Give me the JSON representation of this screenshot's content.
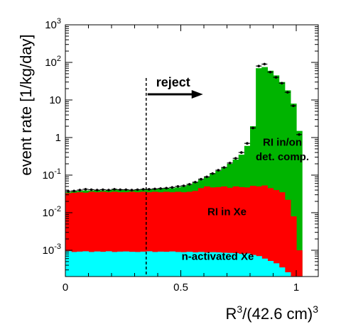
{
  "chart_data": {
    "type": "area",
    "title": "",
    "xlabel": "R",
    "xlabel_sup1": "3",
    "xlabel_mid": "/(42.6 cm)",
    "xlabel_sup2": "3",
    "ylabel": "event rate [1/kg/day]",
    "xlim": [
      0,
      1.08
    ],
    "ylim": [
      0.0002,
      1000
    ],
    "y_scale": "log",
    "grid": false,
    "x_ticks": [
      {
        "value": 0,
        "label": "0"
      },
      {
        "value": 0.5,
        "label": "0.5"
      },
      {
        "value": 1,
        "label": "1"
      }
    ],
    "y_ticks": [
      {
        "value": 0.001,
        "base": "10",
        "exp": "-3"
      },
      {
        "value": 0.01,
        "base": "10",
        "exp": "-2"
      },
      {
        "value": 0.1,
        "base": "10",
        "exp": "-1"
      },
      {
        "value": 1,
        "label": "1"
      },
      {
        "value": 10,
        "label": "10"
      },
      {
        "value": 100,
        "base": "10",
        "exp": "2"
      },
      {
        "value": 1000,
        "base": "10",
        "exp": "3"
      }
    ],
    "bin_width": 0.025,
    "x_bin_starts": [
      0.0,
      0.025,
      0.05,
      0.075,
      0.1,
      0.125,
      0.15,
      0.175,
      0.2,
      0.225,
      0.25,
      0.275,
      0.3,
      0.325,
      0.35,
      0.375,
      0.4,
      0.425,
      0.45,
      0.475,
      0.5,
      0.525,
      0.55,
      0.575,
      0.6,
      0.625,
      0.65,
      0.675,
      0.7,
      0.725,
      0.75,
      0.775,
      0.8,
      0.825,
      0.85,
      0.875,
      0.9,
      0.925,
      0.95,
      0.975,
      1.0,
      1.025
    ],
    "series": [
      {
        "name": "n-activated Xe",
        "color": "#00ffff",
        "stack_top": [
          0.00095,
          0.0009,
          0.00092,
          0.00094,
          0.0009,
          0.00093,
          0.00091,
          0.00094,
          0.0009,
          0.00092,
          0.00093,
          0.00091,
          0.0009,
          0.00092,
          0.00094,
          0.0009,
          0.00092,
          0.00091,
          0.00093,
          0.0009,
          0.00089,
          0.00091,
          0.00088,
          0.0009,
          0.00087,
          0.00089,
          0.00088,
          0.00086,
          0.00085,
          0.00084,
          0.0008,
          0.00082,
          0.00075,
          0.0007,
          0.0006,
          0.00052,
          0.00045,
          0.00035,
          0.00026,
          0.0002,
          0.0002,
          0.0002
        ]
      },
      {
        "name": "RI in Xe",
        "color": "#ff0000",
        "stack_top": [
          0.033,
          0.034,
          0.035,
          0.034,
          0.036,
          0.035,
          0.036,
          0.035,
          0.036,
          0.035,
          0.035,
          0.036,
          0.035,
          0.036,
          0.035,
          0.036,
          0.035,
          0.036,
          0.035,
          0.036,
          0.035,
          0.036,
          0.038,
          0.045,
          0.05,
          0.047,
          0.048,
          0.05,
          0.046,
          0.05,
          0.048,
          0.047,
          0.052,
          0.05,
          0.053,
          0.045,
          0.04,
          0.035,
          0.022,
          0.008,
          0.001,
          0.0002
        ]
      },
      {
        "name": "RI in/on det. comp.",
        "color": "#00b400",
        "stack_top": [
          0.035,
          0.037,
          0.038,
          0.039,
          0.039,
          0.04,
          0.039,
          0.04,
          0.041,
          0.04,
          0.04,
          0.041,
          0.04,
          0.041,
          0.041,
          0.042,
          0.043,
          0.044,
          0.045,
          0.047,
          0.05,
          0.055,
          0.065,
          0.075,
          0.09,
          0.11,
          0.13,
          0.16,
          0.2,
          0.26,
          0.35,
          0.6,
          2.0,
          70,
          75,
          60,
          45,
          30,
          18,
          8,
          1.5,
          0.0002
        ]
      }
    ],
    "data_points": {
      "name": "data",
      "x": [
        0.0125,
        0.0375,
        0.0625,
        0.0875,
        0.1125,
        0.1375,
        0.1625,
        0.1875,
        0.2125,
        0.2375,
        0.2625,
        0.2875,
        0.3125,
        0.3375,
        0.3625,
        0.3875,
        0.4125,
        0.4375,
        0.4625,
        0.4875,
        0.5125,
        0.5375,
        0.5625,
        0.5875,
        0.6125,
        0.6375,
        0.6625,
        0.6875,
        0.7125,
        0.7375,
        0.7625,
        0.7875,
        0.8125,
        0.8375,
        0.8625,
        0.8875,
        0.9125,
        0.9375,
        0.9625,
        0.9875,
        1.0125
      ],
      "y": [
        0.037,
        0.038,
        0.04,
        0.042,
        0.041,
        0.04,
        0.041,
        0.04,
        0.042,
        0.041,
        0.041,
        0.04,
        0.041,
        0.042,
        0.042,
        0.043,
        0.044,
        0.045,
        0.047,
        0.05,
        0.052,
        0.057,
        0.065,
        0.078,
        0.09,
        0.11,
        0.135,
        0.16,
        0.21,
        0.28,
        0.4,
        0.7,
        1.8,
        80,
        90,
        55,
        40,
        28,
        16,
        7,
        1.2
      ]
    },
    "cut_line": {
      "x": 0.35,
      "label": "reject"
    },
    "annotations": [
      {
        "text": "RI in/on",
        "x": 0.94,
        "y": 0.6
      },
      {
        "text": "det. comp.",
        "x": 0.94,
        "y": 0.25
      },
      {
        "text": "RI in Xe",
        "x": 0.7,
        "y": 0.0085
      },
      {
        "text": "n-activated Xe",
        "x": 0.66,
        "y": 0.00055
      }
    ]
  }
}
